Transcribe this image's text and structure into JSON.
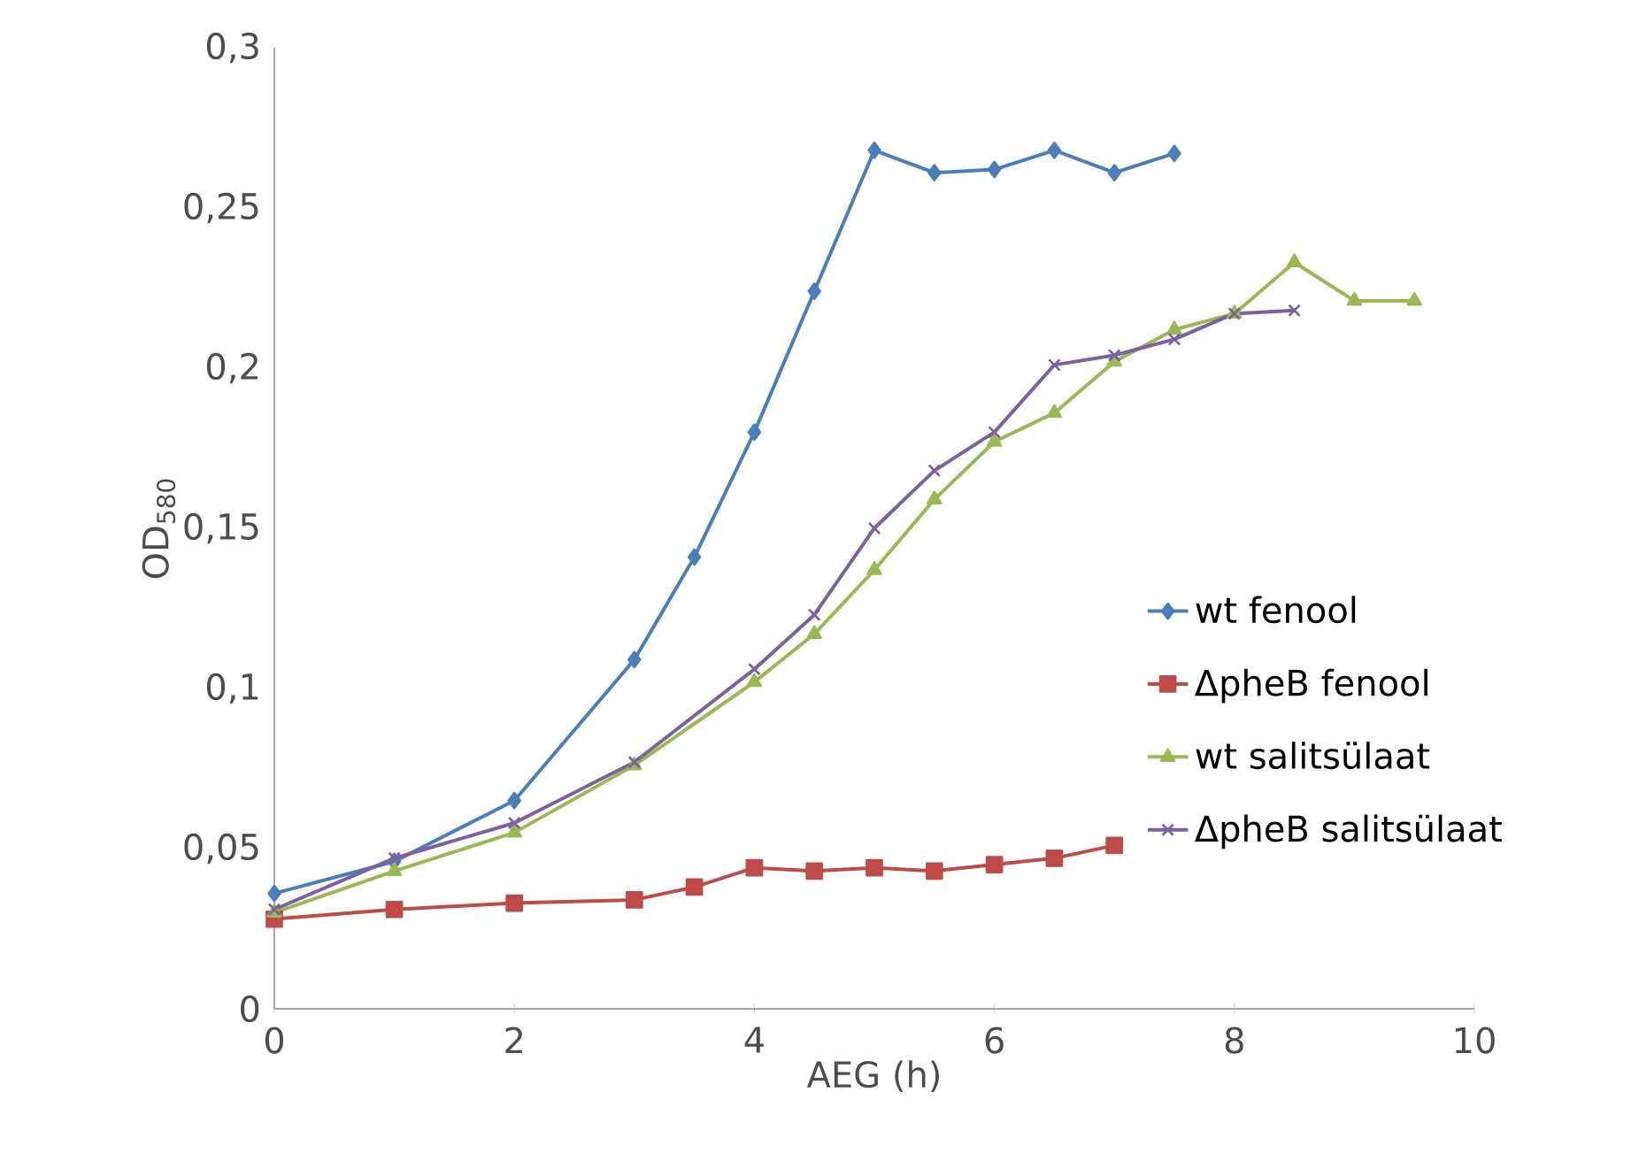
{
  "chart_data": {
    "type": "line",
    "xlabel": "AEG (h)",
    "ylabel": "OD$_{580}$",
    "xlim": [
      0,
      10
    ],
    "xticks": [
      0,
      2,
      4,
      6,
      8,
      10
    ],
    "ylim": [
      0,
      0.3
    ],
    "yticks": [
      {
        "value": 0,
        "label": "0"
      },
      {
        "value": 0.05,
        "label": "0,05"
      },
      {
        "value": 0.1,
        "label": "0,1"
      },
      {
        "value": 0.15,
        "label": "0,15"
      },
      {
        "value": 0.2,
        "label": "0,2"
      },
      {
        "value": 0.25,
        "label": "0,25"
      },
      {
        "value": 0.3,
        "label": "0,3"
      }
    ],
    "legend": "right",
    "grid": false,
    "line_style": "solid",
    "series": [
      {
        "name": "wt fenool",
        "color": "#4a7ebb",
        "marker": "diamond",
        "x": [
          0,
          1,
          2,
          3,
          3.5,
          4,
          4.5,
          5,
          5.5,
          6,
          6.5,
          7,
          7.5
        ],
        "values": [
          0.036,
          0.046,
          0.065,
          0.109,
          0.141,
          0.18,
          0.224,
          0.268,
          0.261,
          0.262,
          0.268,
          0.261,
          0.267
        ]
      },
      {
        "name": "ΔpheB fenool",
        "color": "#be4b48",
        "marker": "square",
        "x": [
          0,
          1,
          2,
          3,
          3.5,
          4,
          4.5,
          5,
          5.5,
          6,
          6.5,
          7
        ],
        "values": [
          0.028,
          0.031,
          0.033,
          0.034,
          0.038,
          0.044,
          0.043,
          0.044,
          0.043,
          0.045,
          0.047,
          0.051
        ]
      },
      {
        "name": "wt salitsülaat",
        "color": "#98b954",
        "marker": "triangle",
        "x": [
          0,
          1,
          2,
          3,
          4,
          4.5,
          5,
          5.5,
          6,
          6.5,
          7,
          7.5,
          8,
          8.5,
          9,
          9.5
        ],
        "values": [
          0.03,
          0.043,
          0.055,
          0.076,
          0.102,
          0.117,
          0.137,
          0.159,
          0.177,
          0.186,
          0.202,
          0.212,
          0.217,
          0.233,
          0.221,
          0.221
        ]
      },
      {
        "name": "ΔpheB salitsülaat",
        "color": "#7d60a0",
        "marker": "cross",
        "x": [
          0,
          1,
          2,
          3,
          4,
          4.5,
          5,
          5.5,
          6,
          6.5,
          7,
          7.5,
          8,
          8.5
        ],
        "values": [
          0.031,
          0.047,
          0.058,
          0.077,
          0.106,
          0.123,
          0.15,
          0.168,
          0.18,
          0.201,
          0.204,
          0.209,
          0.217,
          0.218
        ]
      }
    ]
  }
}
